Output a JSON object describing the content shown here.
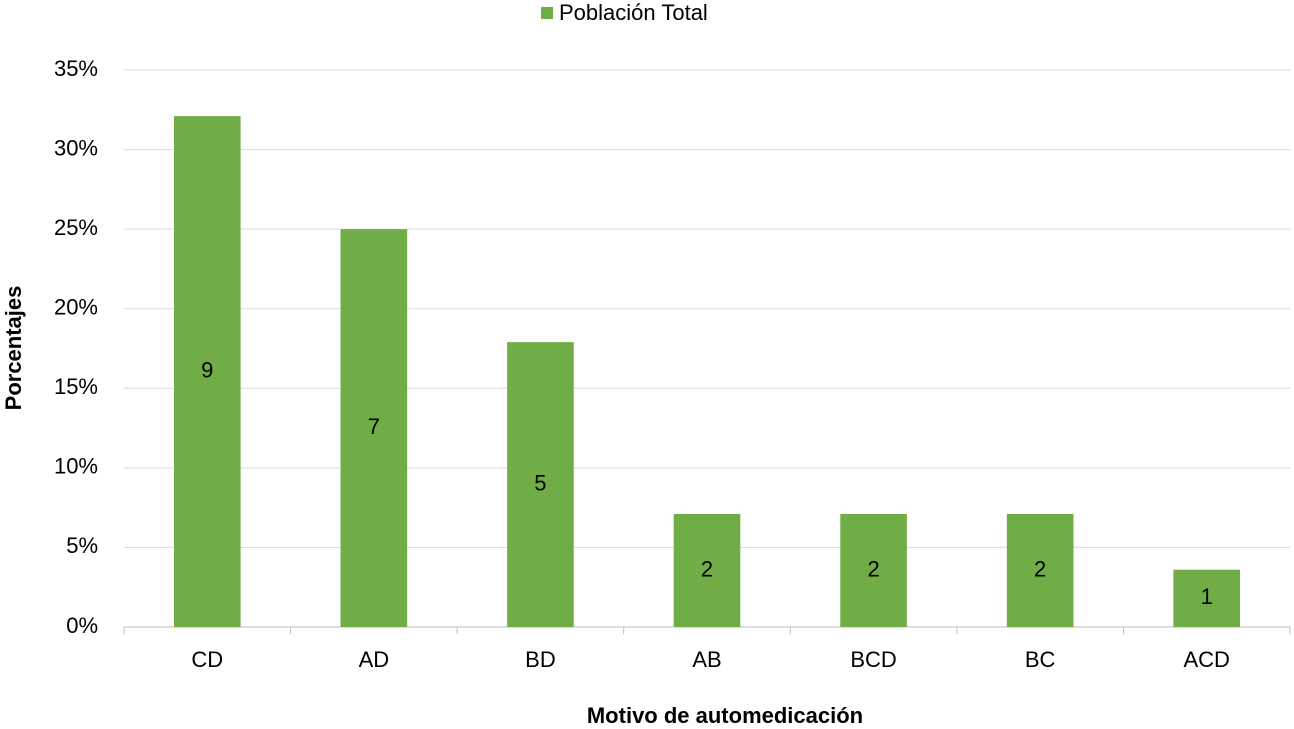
{
  "chart_data": {
    "type": "bar",
    "legend": "Población Total",
    "xlabel": "Motivo de automedicación",
    "ylabel": "Porcentajes",
    "categories": [
      "CD",
      "AD",
      "BD",
      "AB",
      "BCD",
      "BC",
      "ACD"
    ],
    "values": [
      32.1,
      25,
      17.9,
      7.1,
      7.1,
      7.1,
      3.6
    ],
    "counts": [
      9,
      7,
      5,
      2,
      2,
      2,
      1
    ],
    "color": "#70ad47",
    "ylim": [
      0,
      35
    ],
    "yticks": [
      {
        "value": 0,
        "label": "0%"
      },
      {
        "value": 5,
        "label": "5%"
      },
      {
        "value": 10,
        "label": "10%"
      },
      {
        "value": 15,
        "label": "15%"
      },
      {
        "value": 20,
        "label": "20%"
      },
      {
        "value": 25,
        "label": "25%"
      },
      {
        "value": 30,
        "label": "30%"
      },
      {
        "value": 35,
        "label": "35%"
      }
    ],
    "grid": true
  }
}
